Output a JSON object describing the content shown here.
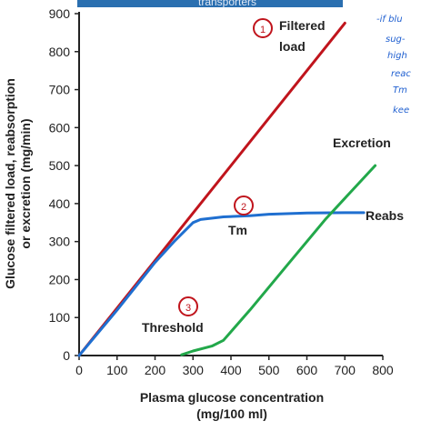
{
  "chart_data": {
    "type": "line",
    "title": "",
    "header_banner": "transporters",
    "xlabel": [
      "Plasma glucose concentration",
      "(mg/100 ml)"
    ],
    "ylabel": [
      "Glucose filtered load, reabsorption",
      "or excretion (mg/min)"
    ],
    "xlim": [
      0,
      800
    ],
    "ylim": [
      0,
      900
    ],
    "x_ticks": [
      0,
      100,
      200,
      300,
      400,
      500,
      600,
      700,
      800
    ],
    "y_ticks": [
      0,
      100,
      200,
      300,
      400,
      500,
      600,
      700,
      800,
      900
    ],
    "grid": false,
    "series": [
      {
        "name": "Filtered load",
        "color": "#c0141c",
        "x": [
          0,
          700
        ],
        "y": [
          0,
          875
        ]
      },
      {
        "name": "Reabs",
        "color": "#1f6fd0",
        "x": [
          0,
          100,
          200,
          250,
          300,
          320,
          380,
          450,
          500,
          600,
          700,
          750
        ],
        "y": [
          0,
          120,
          245,
          300,
          350,
          358,
          365,
          368,
          372,
          375,
          376,
          376
        ]
      },
      {
        "name": "Excretion",
        "color": "#22a84a",
        "x": [
          270,
          300,
          350,
          380,
          450,
          550,
          650,
          780
        ],
        "y": [
          2,
          12,
          25,
          40,
          120,
          240,
          360,
          500
        ]
      }
    ],
    "annotations": [
      {
        "marker": "1",
        "label": "Filtered load",
        "x": 490,
        "y": 860
      },
      {
        "marker": "2",
        "label": "Tm",
        "x": 440,
        "y": 395
      },
      {
        "marker": "3",
        "label": "Threshold",
        "x": 290,
        "y": 130
      }
    ],
    "handwritten_notes": [
      "-if blu",
      "sug-",
      "high",
      "reac",
      "Tm",
      "kee"
    ]
  }
}
